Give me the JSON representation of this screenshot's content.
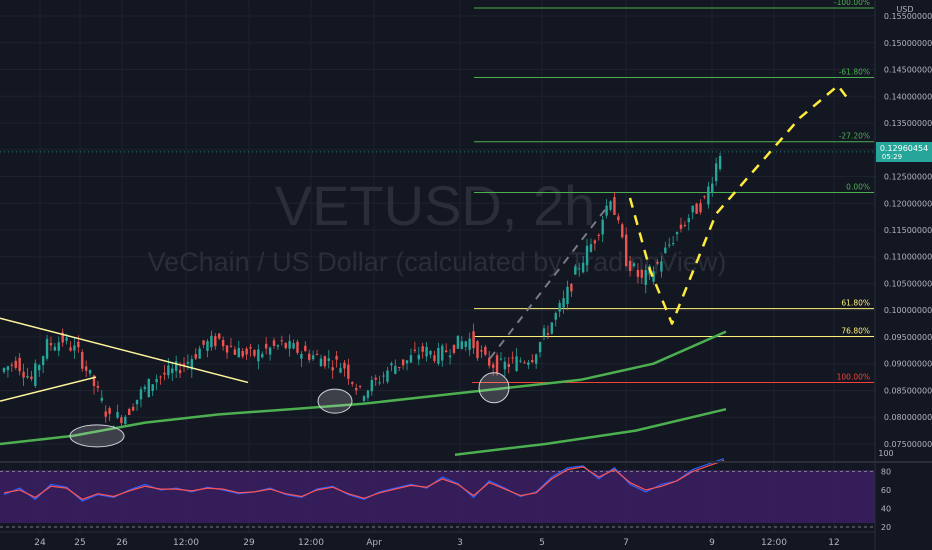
{
  "currency": "USD",
  "watermark": {
    "symbol": "VETUSD, 2h",
    "description": "VeChain / US Dollar (calculated by TradingView)"
  },
  "price_badge": {
    "price": "0.12960454",
    "countdown": "05:29"
  },
  "colors": {
    "background": "#131722",
    "grid": "#1e222d",
    "candle_up": "#26a69a",
    "candle_down": "#ef5350",
    "ma": "#4caf50",
    "trendline": "#fff59d",
    "projection": "#ffeb3b",
    "fib_green": "#4caf50",
    "fib_yellow": "#fff176",
    "fib_red": "#f44336",
    "rsi_band": "#3b1f63",
    "rsi_line1": "#2962ff",
    "rsi_line2": "#ff5252",
    "axis_text": "#b2b5be"
  },
  "chart_data": [
    {
      "type": "candlestick",
      "title": "VETUSD, 2h",
      "subtitle": "VeChain / US Dollar (calculated by TradingView)",
      "ylabel": "USD",
      "ylim": [
        0.072,
        0.158
      ],
      "price_ticks": [
        "0.07500000",
        "0.08000000",
        "0.08500000",
        "0.09000000",
        "0.09500000",
        "0.10000000",
        "0.10500000",
        "0.11000000",
        "0.11500000",
        "0.12000000",
        "0.12500000",
        "0.13000000",
        "0.13500000",
        "0.14000000",
        "0.14500000",
        "0.15000000",
        "0.15500000"
      ],
      "x_ticks": [
        "24",
        "25",
        "26",
        "12:00",
        "29",
        "12:00",
        "Apr",
        "3",
        "5",
        "7",
        "9",
        "12:00",
        "12"
      ],
      "price_path": [
        [
          "24",
          0.0885
        ],
        [
          "24",
          0.0905
        ],
        [
          "24",
          0.087
        ],
        [
          "24",
          0.0935
        ],
        [
          "25",
          0.0945
        ],
        [
          "25",
          0.092
        ],
        [
          "25",
          0.086
        ],
        [
          "25",
          0.0795
        ],
        [
          "25",
          0.0805
        ],
        [
          "26",
          0.0845
        ],
        [
          "26",
          0.0875
        ],
        [
          "26",
          0.0885
        ],
        [
          "26",
          0.0905
        ],
        [
          "12:00",
          0.0935
        ],
        [
          "12:00",
          0.0945
        ],
        [
          "12:00",
          0.0925
        ],
        [
          "12:00",
          0.0915
        ],
        [
          "29",
          0.0925
        ],
        [
          "29",
          0.0935
        ],
        [
          "29",
          0.0925
        ],
        [
          "29",
          0.0915
        ],
        [
          "12:00",
          0.0905
        ],
        [
          "12:00",
          0.0895
        ],
        [
          "12:00",
          0.0845
        ],
        [
          "12:00",
          0.0865
        ],
        [
          "Apr",
          0.0895
        ],
        [
          "Apr",
          0.0905
        ],
        [
          "Apr",
          0.0925
        ],
        [
          "Apr",
          0.0915
        ],
        [
          "3",
          0.0935
        ],
        [
          "3",
          0.0945
        ],
        [
          "3",
          0.0905
        ],
        [
          "3",
          0.0895
        ],
        [
          "5",
          0.0905
        ],
        [
          "5",
          0.0915
        ],
        [
          "5",
          0.0965
        ],
        [
          "5",
          0.1015
        ],
        [
          "5",
          0.1085
        ],
        [
          "7",
          0.1135
        ],
        [
          "7",
          0.1215
        ],
        [
          "7",
          0.1095
        ],
        [
          "7",
          0.1055
        ],
        [
          "7",
          0.1085
        ],
        [
          "9",
          0.1135
        ],
        [
          "9",
          0.1175
        ],
        [
          "9",
          0.1205
        ],
        [
          "9",
          0.1296
        ]
      ],
      "last_price": 0.12960454,
      "moving_averages": [
        {
          "name": "",
          "points": [
            [
              "24",
              0.075
            ],
            [
              "25",
              0.0765
            ],
            [
              "26",
              0.079
            ],
            [
              "12:00",
              0.0805
            ],
            [
              "29",
              0.0815
            ],
            [
              "12:00",
              0.0825
            ],
            [
              "Apr",
              0.084
            ],
            [
              "3",
              0.0855
            ],
            [
              "5",
              0.087
            ],
            [
              "7",
              0.09
            ],
            [
              "9",
              0.096
            ]
          ]
        },
        {
          "name": "",
          "points": [
            [
              "3",
              0.073
            ],
            [
              "5",
              0.075
            ],
            [
              "7",
              0.0775
            ],
            [
              "9",
              0.0815
            ]
          ]
        }
      ],
      "fib_levels": [
        {
          "label": "-100.00%",
          "price": 0.1565,
          "color": "green"
        },
        {
          "label": "-61.80%",
          "price": 0.1435,
          "color": "green"
        },
        {
          "label": "-27.20%",
          "price": 0.1315,
          "color": "green"
        },
        {
          "label": "0.00%",
          "price": 0.122,
          "color": "green"
        },
        {
          "label": "61.80%",
          "price": 0.1003,
          "color": "yellow"
        },
        {
          "label": "76.80%",
          "price": 0.0951,
          "color": "yellow"
        },
        {
          "label": "100.00%",
          "price": 0.0865,
          "color": "red"
        }
      ],
      "trendlines": [
        {
          "points": [
            [
              "24",
              0.0985
            ],
            [
              "12:00",
              0.0865
            ]
          ]
        },
        {
          "points": [
            [
              "24",
              0.083
            ],
            [
              "25",
              0.0875
            ]
          ]
        }
      ],
      "projection_path": [
        [
          "7",
          0.121
        ],
        [
          "7",
          0.1075
        ],
        [
          "9",
          0.0975
        ],
        [
          "9",
          0.118
        ],
        [
          "12:00",
          0.136
        ],
        [
          "12",
          0.142
        ],
        [
          "12",
          0.1395
        ]
      ],
      "highlight_circles": [
        [
          "25",
          0.0765
        ],
        [
          "12:00",
          0.083
        ],
        [
          "3",
          0.0855
        ]
      ]
    },
    {
      "type": "line",
      "title": "",
      "ylim": [
        20,
        100
      ],
      "y_ticks": [
        "100",
        "80",
        "60",
        "40",
        "20"
      ],
      "band": [
        20,
        80
      ],
      "series": [
        {
          "name": "",
          "values": [
            55,
            62,
            50,
            66,
            63,
            48,
            55,
            52,
            60,
            66,
            60,
            62,
            58,
            63,
            60,
            56,
            58,
            62,
            55,
            52,
            61,
            64,
            55,
            50,
            58,
            62,
            66,
            62,
            74,
            67,
            52,
            70,
            62,
            53,
            58,
            74,
            84,
            86,
            72,
            84,
            66,
            58,
            66,
            70,
            82,
            88,
            94
          ]
        },
        {
          "name": "",
          "values": [
            57,
            60,
            52,
            64,
            62,
            50,
            56,
            53,
            59,
            64,
            61,
            61,
            59,
            62,
            61,
            57,
            58,
            61,
            56,
            53,
            60,
            63,
            56,
            51,
            57,
            61,
            65,
            63,
            72,
            66,
            54,
            68,
            61,
            54,
            57,
            72,
            82,
            85,
            74,
            82,
            68,
            60,
            64,
            70,
            80,
            86,
            92
          ]
        }
      ]
    }
  ]
}
